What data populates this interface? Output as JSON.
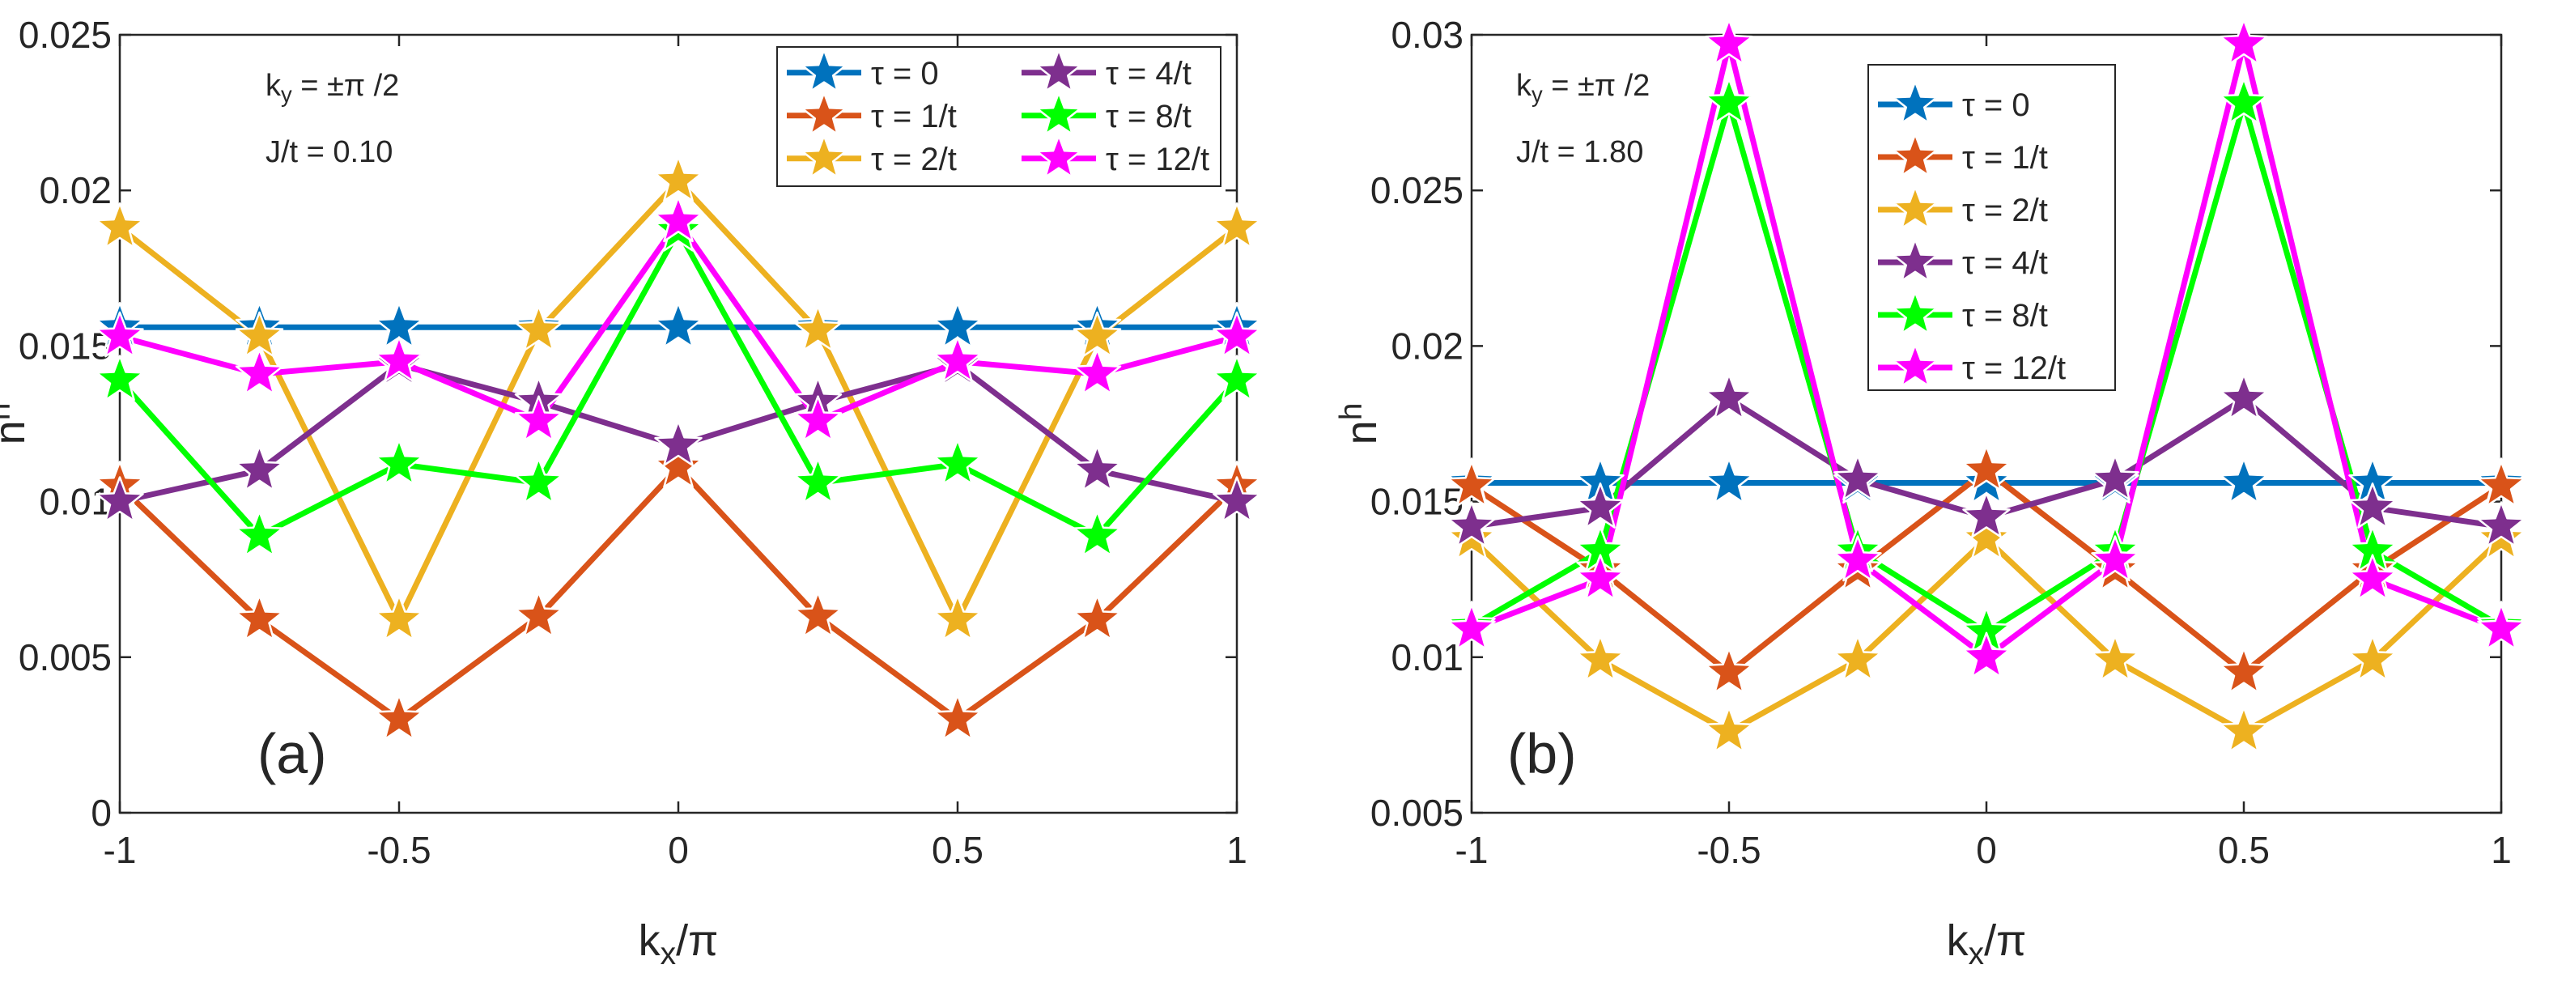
{
  "colors": {
    "tau_0": "#0072BD",
    "tau_1": "#D95319",
    "tau_2": "#EDB120",
    "tau_4": "#7E2F8E",
    "tau_8": "#00FF00",
    "tau_12": "#FF00FF"
  },
  "marker": "star-icon",
  "chart_data": [
    {
      "type": "line",
      "panel_label": "(a)",
      "xlabel": "k_x/π",
      "ylabel": "n^h",
      "xlim": [
        -1,
        1
      ],
      "ylim": [
        0,
        0.025
      ],
      "x_ticks": [
        "-1",
        "-0.5",
        "0",
        "0.5",
        "1"
      ],
      "y_ticks": [
        "0",
        "0.005",
        "0.01",
        "0.015",
        "0.02",
        "0.025"
      ],
      "annotations": [
        "k_y = ±π /2",
        "J/t = 0.10"
      ],
      "legend_position": "top-right",
      "legend_columns": 2,
      "grid": false,
      "x": [
        -1,
        -0.75,
        -0.5,
        -0.25,
        0,
        0.25,
        0.5,
        0.75,
        1
      ],
      "series": [
        {
          "name": "τ = 0",
          "color_key": "tau_0",
          "values": [
            0.0156,
            0.0156,
            0.0156,
            0.0156,
            0.0156,
            0.0156,
            0.0156,
            0.0156,
            0.0156
          ]
        },
        {
          "name": "τ = 1/t",
          "color_key": "tau_1",
          "values": [
            0.0105,
            0.0062,
            0.003,
            0.0063,
            0.0111,
            0.0063,
            0.003,
            0.0062,
            0.0105
          ]
        },
        {
          "name": "τ = 2/t",
          "color_key": "tau_2",
          "values": [
            0.0188,
            0.0153,
            0.0062,
            0.0155,
            0.0203,
            0.0155,
            0.0062,
            0.0153,
            0.0188
          ]
        },
        {
          "name": "τ = 4/t",
          "color_key": "tau_4",
          "values": [
            0.01,
            0.011,
            0.0144,
            0.0132,
            0.0118,
            0.0132,
            0.0144,
            0.011,
            0.01
          ]
        },
        {
          "name": "τ = 8/t",
          "color_key": "tau_8",
          "values": [
            0.0139,
            0.0089,
            0.0112,
            0.0106,
            0.0187,
            0.0106,
            0.0112,
            0.0089,
            0.0139
          ]
        },
        {
          "name": "τ = 12/t",
          "color_key": "tau_12",
          "values": [
            0.0153,
            0.0141,
            0.0145,
            0.0126,
            0.019,
            0.0126,
            0.0145,
            0.0141,
            0.0153
          ]
        }
      ]
    },
    {
      "type": "line",
      "panel_label": "(b)",
      "xlabel": "k_x/π",
      "ylabel": "n^h",
      "xlim": [
        -1,
        1
      ],
      "ylim": [
        0.005,
        0.03
      ],
      "x_ticks": [
        "-1",
        "-0.5",
        "0",
        "0.5",
        "1"
      ],
      "y_ticks": [
        "0.005",
        "0.01",
        "0.015",
        "0.02",
        "0.025",
        "0.03"
      ],
      "annotations": [
        "k_y = ±π /2",
        "J/t = 1.80"
      ],
      "legend_position": "top-center",
      "legend_columns": 1,
      "grid": false,
      "x": [
        -1,
        -0.75,
        -0.5,
        -0.25,
        0,
        0.25,
        0.5,
        0.75,
        1
      ],
      "series": [
        {
          "name": "τ = 0",
          "color_key": "tau_0",
          "values": [
            0.0156,
            0.0156,
            0.0156,
            0.0156,
            0.0156,
            0.0156,
            0.0156,
            0.0156,
            0.0156
          ]
        },
        {
          "name": "τ = 1/t",
          "color_key": "tau_1",
          "values": [
            0.0155,
            0.0128,
            0.0095,
            0.0128,
            0.016,
            0.0128,
            0.0095,
            0.0128,
            0.0155
          ]
        },
        {
          "name": "τ = 2/t",
          "color_key": "tau_2",
          "values": [
            0.0138,
            0.0099,
            0.0076,
            0.0099,
            0.0138,
            0.0099,
            0.0076,
            0.0099,
            0.0138
          ]
        },
        {
          "name": "τ = 4/t",
          "color_key": "tau_4",
          "values": [
            0.0142,
            0.0148,
            0.0183,
            0.0157,
            0.0145,
            0.0157,
            0.0183,
            0.0148,
            0.0142
          ]
        },
        {
          "name": "τ = 8/t",
          "color_key": "tau_8",
          "values": [
            0.011,
            0.0134,
            0.0278,
            0.0134,
            0.0108,
            0.0134,
            0.0278,
            0.0134,
            0.011
          ]
        },
        {
          "name": "τ = 12/t",
          "color_key": "tau_12",
          "values": [
            0.0109,
            0.0125,
            0.0297,
            0.0131,
            0.01,
            0.0131,
            0.0297,
            0.0125,
            0.0109
          ]
        }
      ]
    }
  ]
}
